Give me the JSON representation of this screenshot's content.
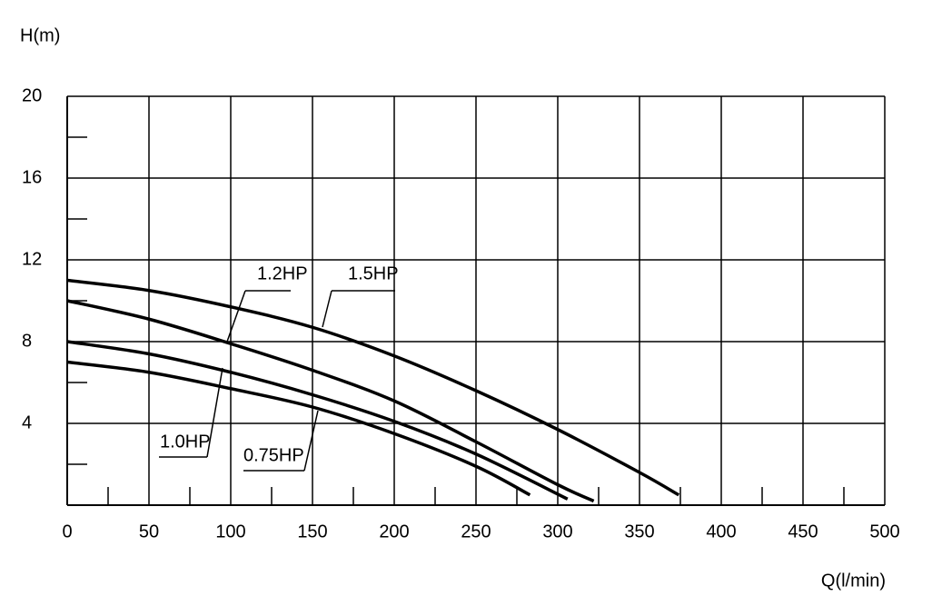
{
  "chart_data": {
    "type": "line",
    "y_label": "H(m)",
    "x_label": "Q(l/min)",
    "xlim": [
      0,
      500
    ],
    "xticks": [
      0,
      50,
      100,
      150,
      200,
      250,
      300,
      350,
      400,
      450,
      500
    ],
    "xminor": [
      25,
      75,
      125,
      175,
      225,
      275,
      325,
      375,
      425,
      475
    ],
    "ylim": [
      0,
      20
    ],
    "yticks": [
      4,
      8,
      12,
      16,
      20
    ],
    "yminor": [
      2,
      6,
      10,
      14,
      18
    ],
    "grid": true,
    "color": "#000000",
    "series": [
      {
        "name": "1.5HP",
        "color": "#000000",
        "x": [
          0,
          50,
          100,
          150,
          200,
          250,
          300,
          350,
          374
        ],
        "values": [
          11,
          10.5,
          9.7,
          8.7,
          7.3,
          5.6,
          3.7,
          1.6,
          0.5
        ]
      },
      {
        "name": "1.2HP",
        "color": "#000000",
        "x": [
          0,
          50,
          100,
          150,
          200,
          250,
          300,
          322
        ],
        "values": [
          10,
          9.1,
          7.9,
          6.6,
          5.1,
          3.1,
          1.0,
          0.2
        ]
      },
      {
        "name": "1.0HP",
        "color": "#000000",
        "x": [
          0,
          50,
          100,
          150,
          200,
          250,
          306
        ],
        "values": [
          8,
          7.4,
          6.5,
          5.4,
          4.1,
          2.5,
          0.3
        ]
      },
      {
        "name": "0.75HP",
        "color": "#000000",
        "x": [
          0,
          50,
          100,
          150,
          200,
          250,
          283
        ],
        "values": [
          7,
          6.5,
          5.7,
          4.8,
          3.5,
          1.9,
          0.5
        ]
      }
    ]
  }
}
